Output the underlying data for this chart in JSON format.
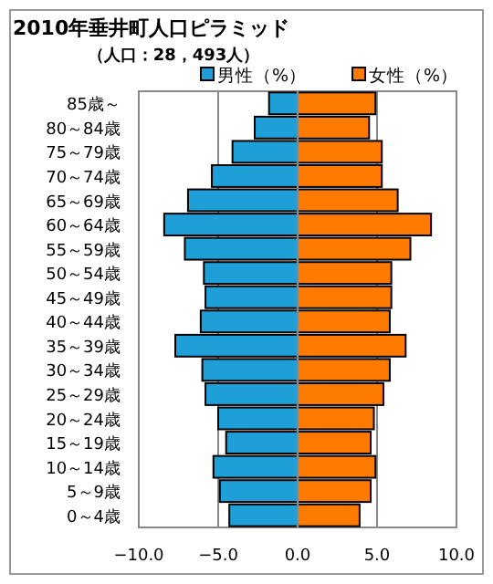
{
  "chart_data": {
    "type": "bar",
    "orientation": "horizontal",
    "title": "2010年垂井町人口ピラミッド",
    "subtitle": "（人口：28，493人）",
    "categories": [
      "85歳～",
      "80～84歳",
      "75～79歳",
      "70～74歳",
      "65～69歳",
      "60～64歳",
      "55～59歳",
      "50～54歳",
      "45～49歳",
      "40～44歳",
      "35～39歳",
      "30～34歳",
      "25～29歳",
      "20～24歳",
      "15～19歳",
      "10～14歳",
      "5～9歳",
      "0～4歳"
    ],
    "series": [
      {
        "name": "男性（%）",
        "color": "#1e9fd8",
        "values": [
          -1.8,
          -2.7,
          -4.1,
          -5.4,
          -6.9,
          -8.4,
          -7.1,
          -5.9,
          -5.8,
          -6.1,
          -7.7,
          -6.0,
          -5.8,
          -5.0,
          -4.5,
          -5.3,
          -4.9,
          -4.3
        ]
      },
      {
        "name": "女性（%）",
        "color": "#ff7a00",
        "values": [
          4.9,
          4.5,
          5.3,
          5.3,
          6.3,
          8.4,
          7.1,
          5.9,
          5.9,
          5.8,
          6.8,
          5.8,
          5.4,
          4.8,
          4.6,
          4.9,
          4.6,
          3.9
        ]
      }
    ],
    "xlim": [
      -10,
      10
    ],
    "xticks": [
      {
        "value": -10,
        "label": "−10.0"
      },
      {
        "value": -5,
        "label": "−5.0"
      },
      {
        "value": 0,
        "label": "0.0"
      },
      {
        "value": 5,
        "label": "5.0"
      },
      {
        "value": 10,
        "label": "10.0"
      }
    ],
    "grid": "x",
    "stacked": true,
    "legend": "top right"
  }
}
